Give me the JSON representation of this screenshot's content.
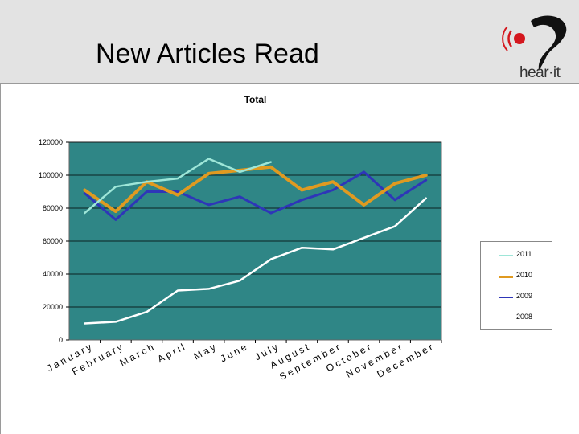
{
  "header": {
    "title": "New Articles Read",
    "brand": "hear·it"
  },
  "chart_data": {
    "type": "line",
    "title": "Total",
    "categories": [
      "January",
      "February",
      "March",
      "April",
      "May",
      "June",
      "July",
      "August",
      "September",
      "October",
      "November",
      "December"
    ],
    "ylim": [
      0,
      120000
    ],
    "yticks": [
      0,
      20000,
      40000,
      60000,
      80000,
      100000,
      120000
    ],
    "grid": true,
    "plot_background": "#2f8686",
    "legend_position": "right",
    "series": [
      {
        "name": "2011",
        "color": "#9ee6d8",
        "width": 2.5,
        "values": [
          77000,
          93000,
          96000,
          98000,
          110000,
          102000,
          108000,
          null,
          null,
          null,
          null,
          null
        ]
      },
      {
        "name": "2010",
        "color": "#e09a20",
        "width": 4,
        "values": [
          91000,
          78000,
          96000,
          88000,
          101000,
          103000,
          105000,
          91000,
          96000,
          82000,
          95000,
          100000
        ]
      },
      {
        "name": "2009",
        "color": "#2e36b8",
        "width": 3,
        "values": [
          89000,
          73000,
          90000,
          90000,
          82000,
          87000,
          77000,
          85000,
          91000,
          102000,
          85000,
          97000
        ]
      },
      {
        "name": "2008",
        "color": "#ffffff",
        "width": 2.5,
        "values": [
          10000,
          11000,
          17000,
          30000,
          31000,
          36000,
          49000,
          56000,
          55000,
          62000,
          69000,
          86000
        ]
      }
    ]
  }
}
